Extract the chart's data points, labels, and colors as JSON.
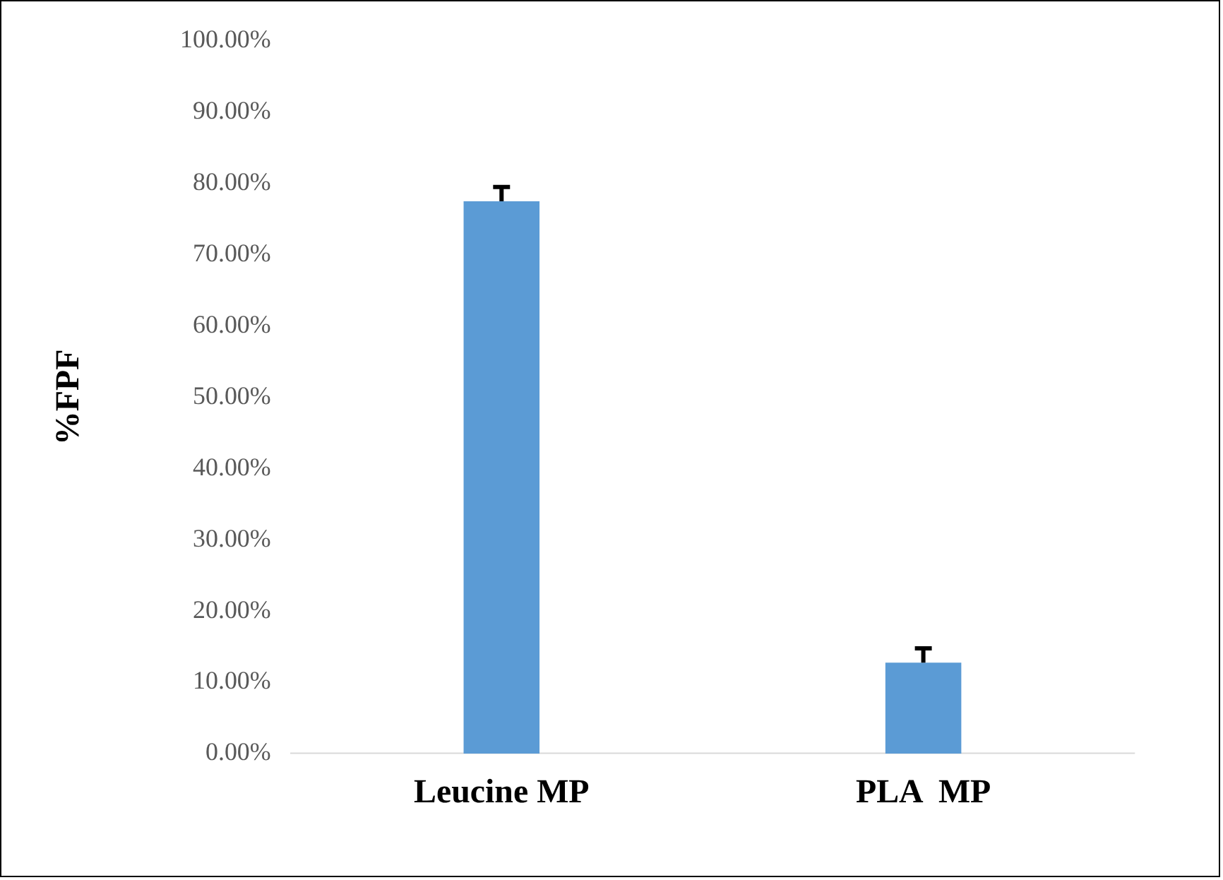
{
  "chart_data": {
    "type": "bar",
    "ylabel": "%FPF",
    "categories": [
      "Leucine MP",
      "PLA  MP"
    ],
    "values": [
      77.5,
      12.75
    ],
    "color": "#5b9bd5",
    "errors": [
      [
        77.5,
        79.5
      ],
      [
        12.75,
        14.75
      ]
    ],
    "ylim": [
      0,
      100
    ],
    "yticks": [
      {
        "value": 0,
        "label": "0.00%"
      },
      {
        "value": 10,
        "label": "10.00%"
      },
      {
        "value": 20,
        "label": "20.00%"
      },
      {
        "value": 30,
        "label": "30.00%"
      },
      {
        "value": 40,
        "label": "40.00%"
      },
      {
        "value": 50,
        "label": "50.00%"
      },
      {
        "value": 60,
        "label": "60.00%"
      },
      {
        "value": 70,
        "label": "70.00%"
      },
      {
        "value": 80,
        "label": "80.00%"
      },
      {
        "value": 90,
        "label": "90.00%"
      },
      {
        "value": 100,
        "label": "100.00%"
      }
    ],
    "grid": false,
    "legend": false
  }
}
